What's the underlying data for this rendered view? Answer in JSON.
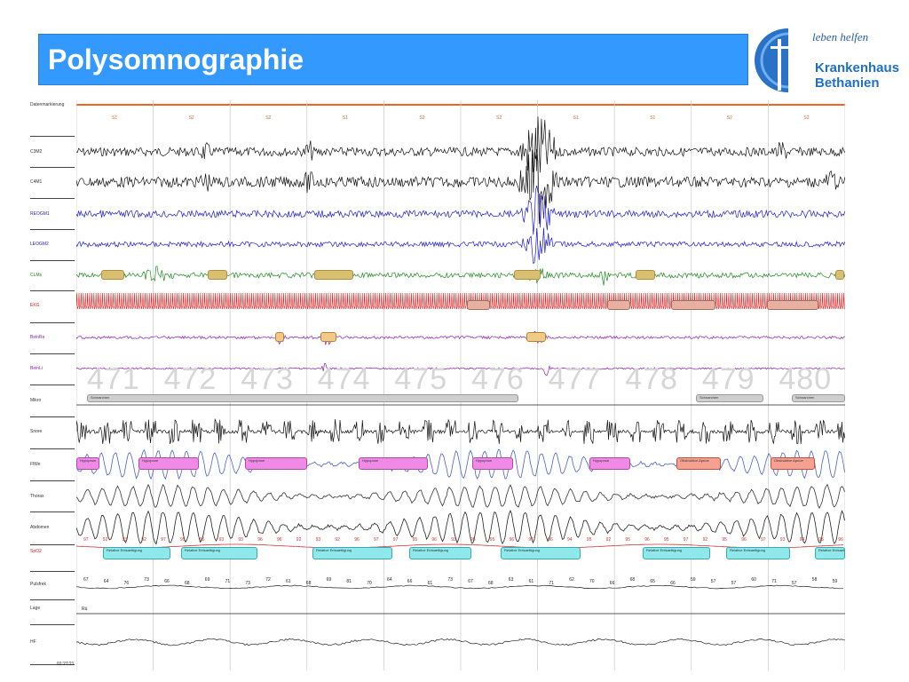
{
  "header": {
    "title": "Polysomnographie"
  },
  "logo": {
    "slogan": "leben helfen",
    "name_line1": "Krankenhaus",
    "name_line2": "Bethanien"
  },
  "channels": [
    {
      "label": "Datenmarkierung"
    },
    {
      "label": "C3M2"
    },
    {
      "label": "C4M1"
    },
    {
      "label": "REOGM1"
    },
    {
      "label": "LEOGM2"
    },
    {
      "label": "CLMs"
    },
    {
      "label": "EKG"
    },
    {
      "label": "BeinRe"
    },
    {
      "label": "BeinLi"
    },
    {
      "label": "Mikro"
    },
    {
      "label": "Snore"
    },
    {
      "label": "FlWe"
    },
    {
      "label": "Thorax"
    },
    {
      "label": "Abdomen"
    },
    {
      "label": "SpO2"
    },
    {
      "label": "Pulsfrek"
    },
    {
      "label": "Lage"
    },
    {
      "label": "HF"
    }
  ],
  "sleep_stages": [
    "S1",
    "S2",
    "S2",
    "S1",
    "S2",
    "S2",
    "S1",
    "S1",
    "S2",
    "S2"
  ],
  "epochs": [
    "471",
    "472",
    "473",
    "474",
    "475",
    "476",
    "477",
    "478",
    "479",
    "480"
  ],
  "mikro_annotations": [
    "Schnarchen",
    "Schnarchen",
    "Schnarchen"
  ],
  "flow_annotations": [
    "Hypopnoe",
    "Hypopnoe",
    "Hypopnoe",
    "Hypopnoe",
    "Hypopnoe",
    "Obstruktive Apnoe",
    "Obstruktive Apnoe",
    "Hypopnoe"
  ],
  "spo2_annotations": [
    "Relative Entsaettigung",
    "Relative Entsaettigung",
    "Relative Entsaettigung",
    "Relative Entsaettigung",
    "Relative Entsaettigung",
    "Relative Entsaettigung",
    "Relative Entsaettigung",
    "Relative Entsaettigung"
  ],
  "spo2_values": [
    "97",
    "92",
    "93",
    "92",
    "97",
    "95",
    "95",
    "93",
    "93",
    "96",
    "96",
    "92",
    "93",
    "92",
    "96",
    "97",
    "97",
    "95",
    "96",
    "93",
    "95",
    "95",
    "96",
    "97",
    "96",
    "94",
    "95",
    "92",
    "95",
    "96",
    "95",
    "97",
    "92",
    "95",
    "96",
    "97",
    "93",
    "94",
    "95",
    "96"
  ],
  "pulse_values": [
    "67",
    "64",
    "76",
    "73",
    "66",
    "68",
    "69",
    "71",
    "73",
    "72",
    "61",
    "68",
    "69",
    "81",
    "70",
    "64",
    "66",
    "61",
    "73",
    "67",
    "68",
    "63",
    "61",
    "71",
    "62",
    "70",
    "66",
    "68",
    "65",
    "66",
    "59",
    "57",
    "57",
    "60",
    "71",
    "57",
    "58",
    "59"
  ],
  "position_value": "Rü",
  "time_label": "01:27:21",
  "colors": {
    "title_bg": "#3399ff",
    "eeg": "#111111",
    "eog": "#1a1adb",
    "emg": "#1f8a1f",
    "ecg": "#e02020",
    "leg": "#8a1ab3",
    "flow": "#4a5fcf",
    "spo2_line": "#cc3333",
    "hypopnea_box": "#f08ae6",
    "apnea_box": "#f5a090",
    "desat_box": "#8fe8ea",
    "arousal_box": "#d8c070",
    "snore_box": "#cfcfcf"
  }
}
